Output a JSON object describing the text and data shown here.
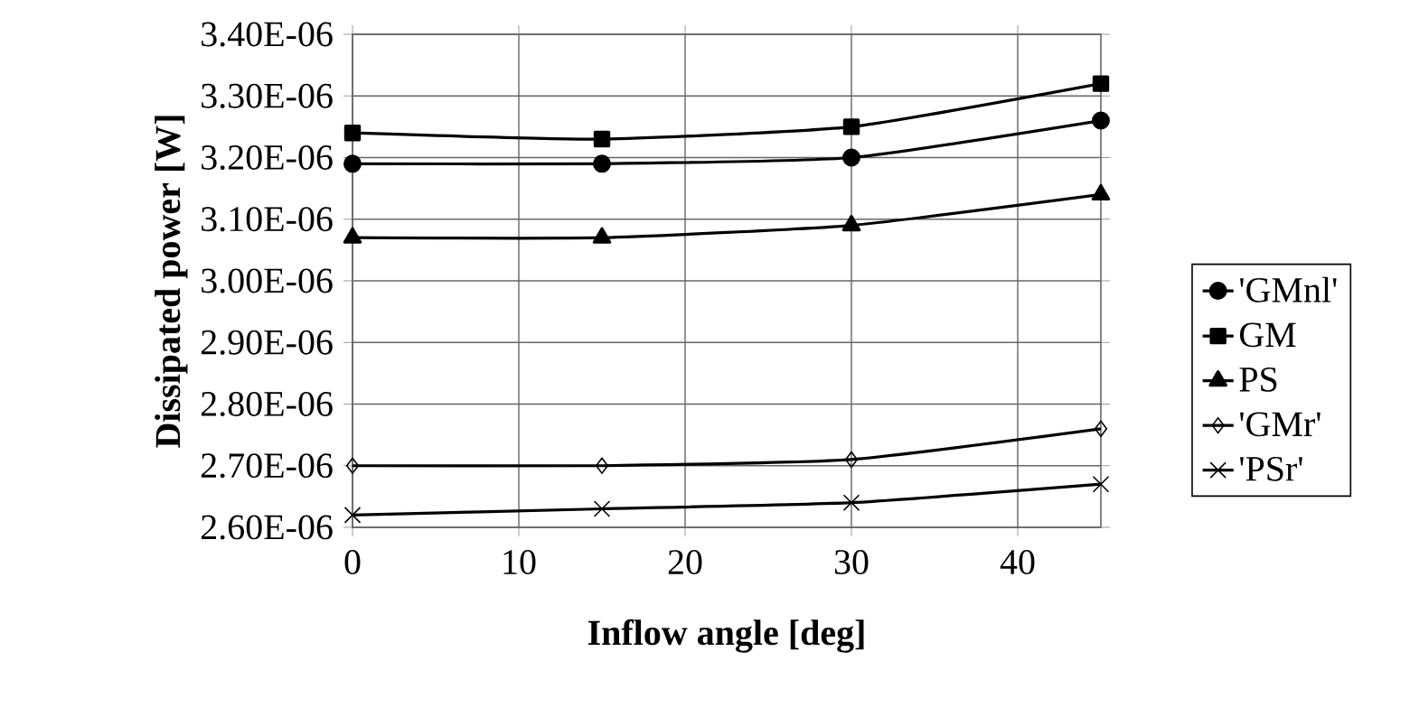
{
  "chart_data": {
    "type": "line",
    "xlabel": "Inflow angle [deg]",
    "ylabel": "Dissipated power [W]",
    "x": [
      0,
      15,
      30,
      45
    ],
    "series": [
      {
        "name": "'GMnl'",
        "color": "#000000",
        "marker": "circle",
        "values": [
          3.19e-06,
          3.19e-06,
          3.2e-06,
          3.26e-06
        ]
      },
      {
        "name": "GM",
        "color": "#000000",
        "marker": "square",
        "values": [
          3.24e-06,
          3.23e-06,
          3.25e-06,
          3.32e-06
        ]
      },
      {
        "name": "PS",
        "color": "#000000",
        "marker": "triangle",
        "values": [
          3.07e-06,
          3.07e-06,
          3.09e-06,
          3.14e-06
        ]
      },
      {
        "name": "'GMr'",
        "color": "#000000",
        "marker": "diamond",
        "values": [
          2.7e-06,
          2.7e-06,
          2.71e-06,
          2.76e-06
        ]
      },
      {
        "name": "'PSr'",
        "color": "#000000",
        "marker": "cross",
        "values": [
          2.62e-06,
          2.63e-06,
          2.64e-06,
          2.67e-06
        ]
      }
    ],
    "xlim": [
      0,
      45
    ],
    "xticks": [
      0,
      10,
      20,
      30,
      40
    ],
    "ylim": [
      2.6e-06,
      3.4e-06
    ],
    "yticks": [
      {
        "value": 2.6e-06,
        "label": "2.60E-06"
      },
      {
        "value": 2.7e-06,
        "label": "2.70E-06"
      },
      {
        "value": 2.8e-06,
        "label": "2.80E-06"
      },
      {
        "value": 2.9e-06,
        "label": "2.90E-06"
      },
      {
        "value": 3e-06,
        "label": "3.00E-06"
      },
      {
        "value": 3.1e-06,
        "label": "3.10E-06"
      },
      {
        "value": 3.2e-06,
        "label": "3.20E-06"
      },
      {
        "value": 3.3e-06,
        "label": "3.30E-06"
      },
      {
        "value": 3.4e-06,
        "label": "3.40E-06"
      }
    ],
    "grid": true,
    "legend": "right",
    "line_style": "solid"
  }
}
